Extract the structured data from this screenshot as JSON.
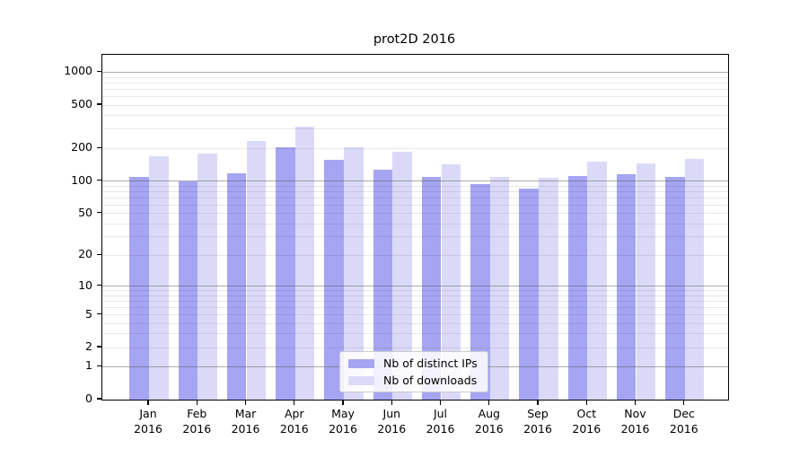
{
  "chart_data": {
    "type": "bar",
    "title": "prot2D 2016",
    "xlabel": "",
    "ylabel": "",
    "scale": "log-like: position proportional to log10(value+1)",
    "ylim": [
      0,
      1440
    ],
    "grid": true,
    "legend_position": "lower center",
    "x_labels": [
      {
        "month": "Jan",
        "year": "2016"
      },
      {
        "month": "Feb",
        "year": "2016"
      },
      {
        "month": "Mar",
        "year": "2016"
      },
      {
        "month": "Apr",
        "year": "2016"
      },
      {
        "month": "May",
        "year": "2016"
      },
      {
        "month": "Jun",
        "year": "2016"
      },
      {
        "month": "Jul",
        "year": "2016"
      },
      {
        "month": "Aug",
        "year": "2016"
      },
      {
        "month": "Sep",
        "year": "2016"
      },
      {
        "month": "Oct",
        "year": "2016"
      },
      {
        "month": "Nov",
        "year": "2016"
      },
      {
        "month": "Dec",
        "year": "2016"
      }
    ],
    "series": [
      {
        "name": "Nb of distinct IPs",
        "color": "#a5a5f3",
        "values": [
          110,
          100,
          118,
          203,
          156,
          126,
          110,
          93,
          85,
          112,
          115,
          110
        ]
      },
      {
        "name": "Nb of downloads",
        "color": "#dadaf8",
        "values": [
          170,
          178,
          235,
          317,
          204,
          185,
          142,
          109,
          108,
          151,
          145,
          160
        ]
      }
    ],
    "y_ticks": [
      {
        "label": "0",
        "value": 0
      },
      {
        "label": "1",
        "value": 1
      },
      {
        "label": "2",
        "value": 2
      },
      {
        "label": "5",
        "value": 5
      },
      {
        "label": "10",
        "value": 10
      },
      {
        "label": "20",
        "value": 20
      },
      {
        "label": "50",
        "value": 50
      },
      {
        "label": "100",
        "value": 100
      },
      {
        "label": "200",
        "value": 200
      },
      {
        "label": "500",
        "value": 500
      },
      {
        "label": "1000",
        "value": 1000
      }
    ],
    "major_grid_values": [
      1,
      10,
      100,
      1000
    ],
    "colors": {
      "axis": "#000000",
      "major_grid": "rgba(90,90,90,0.50)",
      "minor_grid": "rgba(0,0,0,0.085)",
      "text": "#000000",
      "legend_border": "#cccccc"
    }
  }
}
